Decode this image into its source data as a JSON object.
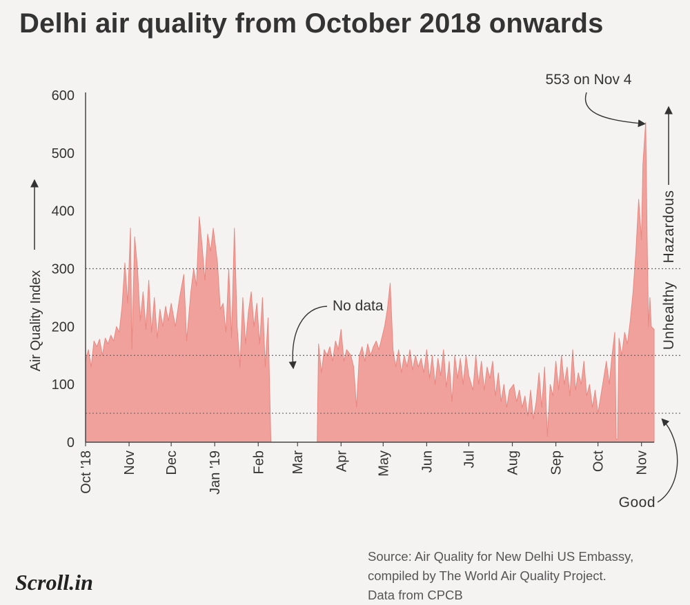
{
  "title": "Delhi air quality from October 2018 onwards",
  "chart_data": {
    "type": "area",
    "ylabel": "Air Quality Index",
    "ylim": [
      0,
      600
    ],
    "yticks": [
      0,
      100,
      200,
      300,
      400,
      500,
      600
    ],
    "xlim": [
      "2018-10-01",
      "2019-11-10"
    ],
    "xticks": [
      {
        "date": "2018-10-01",
        "label": "Oct '18"
      },
      {
        "date": "2018-11-01",
        "label": "Nov"
      },
      {
        "date": "2018-12-01",
        "label": "Dec"
      },
      {
        "date": "2019-01-01",
        "label": "Jan '19"
      },
      {
        "date": "2019-02-01",
        "label": "Feb"
      },
      {
        "date": "2019-03-01",
        "label": "Mar"
      },
      {
        "date": "2019-04-01",
        "label": "Apr"
      },
      {
        "date": "2019-05-01",
        "label": "May"
      },
      {
        "date": "2019-06-01",
        "label": "Jun"
      },
      {
        "date": "2019-07-01",
        "label": "Jul"
      },
      {
        "date": "2019-08-01",
        "label": "Aug"
      },
      {
        "date": "2019-09-01",
        "label": "Sep"
      },
      {
        "date": "2019-10-01",
        "label": "Oct"
      },
      {
        "date": "2019-11-01",
        "label": "Nov"
      }
    ],
    "thresholds": [
      {
        "value": 50,
        "label": "Good"
      },
      {
        "value": 150,
        "label": "Unhealthy"
      },
      {
        "value": 300,
        "label": "Hazardous"
      }
    ],
    "series": [
      {
        "color": "#f0a19c",
        "points": [
          [
            "2018-10-01",
            140
          ],
          [
            "2018-10-03",
            160
          ],
          [
            "2018-10-05",
            130
          ],
          [
            "2018-10-07",
            175
          ],
          [
            "2018-10-09",
            165
          ],
          [
            "2018-10-11",
            178
          ],
          [
            "2018-10-13",
            150
          ],
          [
            "2018-10-15",
            180
          ],
          [
            "2018-10-17",
            170
          ],
          [
            "2018-10-19",
            185
          ],
          [
            "2018-10-21",
            175
          ],
          [
            "2018-10-23",
            200
          ],
          [
            "2018-10-25",
            190
          ],
          [
            "2018-10-27",
            235
          ],
          [
            "2018-10-29",
            310
          ],
          [
            "2018-10-31",
            240
          ],
          [
            "2018-11-02",
            370
          ],
          [
            "2018-11-03",
            160
          ],
          [
            "2018-11-05",
            355
          ],
          [
            "2018-11-07",
            300
          ],
          [
            "2018-11-09",
            210
          ],
          [
            "2018-11-11",
            260
          ],
          [
            "2018-11-13",
            195
          ],
          [
            "2018-11-15",
            280
          ],
          [
            "2018-11-17",
            190
          ],
          [
            "2018-11-19",
            250
          ],
          [
            "2018-11-21",
            180
          ],
          [
            "2018-11-23",
            230
          ],
          [
            "2018-11-25",
            200
          ],
          [
            "2018-11-27",
            235
          ],
          [
            "2018-11-29",
            210
          ],
          [
            "2018-12-01",
            240
          ],
          [
            "2018-12-04",
            200
          ],
          [
            "2018-12-07",
            250
          ],
          [
            "2018-12-10",
            290
          ],
          [
            "2018-12-12",
            175
          ],
          [
            "2018-12-15",
            260
          ],
          [
            "2018-12-17",
            300
          ],
          [
            "2018-12-19",
            270
          ],
          [
            "2018-12-21",
            390
          ],
          [
            "2018-12-23",
            340
          ],
          [
            "2018-12-25",
            280
          ],
          [
            "2018-12-27",
            360
          ],
          [
            "2018-12-29",
            330
          ],
          [
            "2018-12-31",
            370
          ],
          [
            "2019-01-03",
            310
          ],
          [
            "2019-01-05",
            230
          ],
          [
            "2019-01-07",
            240
          ],
          [
            "2019-01-09",
            190
          ],
          [
            "2019-01-11",
            300
          ],
          [
            "2019-01-13",
            180
          ],
          [
            "2019-01-15",
            370
          ],
          [
            "2019-01-17",
            200
          ],
          [
            "2019-01-19",
            130
          ],
          [
            "2019-01-21",
            250
          ],
          [
            "2019-01-23",
            170
          ],
          [
            "2019-01-25",
            225
          ],
          [
            "2019-01-27",
            260
          ],
          [
            "2019-01-29",
            200
          ],
          [
            "2019-01-31",
            240
          ],
          [
            "2019-02-02",
            170
          ],
          [
            "2019-02-04",
            250
          ],
          [
            "2019-02-06",
            130
          ],
          [
            "2019-02-08",
            215
          ],
          [
            "2019-02-10",
            0
          ],
          [
            "2019-03-15",
            0
          ],
          [
            "2019-03-16",
            170
          ],
          [
            "2019-03-18",
            120
          ],
          [
            "2019-03-20",
            160
          ],
          [
            "2019-03-22",
            150
          ],
          [
            "2019-03-24",
            165
          ],
          [
            "2019-03-26",
            140
          ],
          [
            "2019-03-28",
            175
          ],
          [
            "2019-03-30",
            160
          ],
          [
            "2019-04-01",
            195
          ],
          [
            "2019-04-03",
            140
          ],
          [
            "2019-04-05",
            160
          ],
          [
            "2019-04-08",
            150
          ],
          [
            "2019-04-10",
            130
          ],
          [
            "2019-04-12",
            60
          ],
          [
            "2019-04-14",
            150
          ],
          [
            "2019-04-16",
            165
          ],
          [
            "2019-04-18",
            140
          ],
          [
            "2019-04-20",
            170
          ],
          [
            "2019-04-22",
            150
          ],
          [
            "2019-04-24",
            165
          ],
          [
            "2019-04-26",
            175
          ],
          [
            "2019-04-28",
            160
          ],
          [
            "2019-04-30",
            180
          ],
          [
            "2019-05-02",
            200
          ],
          [
            "2019-05-04",
            230
          ],
          [
            "2019-05-06",
            275
          ],
          [
            "2019-05-08",
            160
          ],
          [
            "2019-05-10",
            130
          ],
          [
            "2019-05-12",
            160
          ],
          [
            "2019-05-14",
            120
          ],
          [
            "2019-05-16",
            150
          ],
          [
            "2019-05-18",
            130
          ],
          [
            "2019-05-20",
            160
          ],
          [
            "2019-05-22",
            125
          ],
          [
            "2019-05-24",
            150
          ],
          [
            "2019-05-26",
            130
          ],
          [
            "2019-05-28",
            145
          ],
          [
            "2019-05-30",
            120
          ],
          [
            "2019-06-01",
            160
          ],
          [
            "2019-06-03",
            110
          ],
          [
            "2019-06-05",
            150
          ],
          [
            "2019-06-07",
            100
          ],
          [
            "2019-06-09",
            145
          ],
          [
            "2019-06-11",
            115
          ],
          [
            "2019-06-13",
            160
          ],
          [
            "2019-06-15",
            95
          ],
          [
            "2019-06-17",
            140
          ],
          [
            "2019-06-19",
            70
          ],
          [
            "2019-06-21",
            150
          ],
          [
            "2019-06-23",
            110
          ],
          [
            "2019-06-25",
            145
          ],
          [
            "2019-06-27",
            100
          ],
          [
            "2019-06-29",
            150
          ],
          [
            "2019-07-01",
            115
          ],
          [
            "2019-07-04",
            90
          ],
          [
            "2019-07-06",
            150
          ],
          [
            "2019-07-08",
            100
          ],
          [
            "2019-07-10",
            140
          ],
          [
            "2019-07-12",
            90
          ],
          [
            "2019-07-14",
            130
          ],
          [
            "2019-07-16",
            110
          ],
          [
            "2019-07-18",
            140
          ],
          [
            "2019-07-20",
            80
          ],
          [
            "2019-07-22",
            120
          ],
          [
            "2019-07-24",
            70
          ],
          [
            "2019-07-26",
            100
          ],
          [
            "2019-07-28",
            60
          ],
          [
            "2019-07-30",
            90
          ],
          [
            "2019-08-02",
            100
          ],
          [
            "2019-08-04",
            70
          ],
          [
            "2019-08-06",
            90
          ],
          [
            "2019-08-08",
            60
          ],
          [
            "2019-08-10",
            80
          ],
          [
            "2019-08-12",
            45
          ],
          [
            "2019-08-14",
            90
          ],
          [
            "2019-08-16",
            40
          ],
          [
            "2019-08-18",
            70
          ],
          [
            "2019-08-20",
            120
          ],
          [
            "2019-08-22",
            60
          ],
          [
            "2019-08-24",
            130
          ],
          [
            "2019-08-26",
            10
          ],
          [
            "2019-08-28",
            100
          ],
          [
            "2019-08-30",
            80
          ],
          [
            "2019-09-01",
            140
          ],
          [
            "2019-09-03",
            90
          ],
          [
            "2019-09-05",
            150
          ],
          [
            "2019-09-07",
            100
          ],
          [
            "2019-09-09",
            130
          ],
          [
            "2019-09-11",
            80
          ],
          [
            "2019-09-13",
            160
          ],
          [
            "2019-09-15",
            90
          ],
          [
            "2019-09-17",
            120
          ],
          [
            "2019-09-19",
            100
          ],
          [
            "2019-09-21",
            140
          ],
          [
            "2019-09-23",
            80
          ],
          [
            "2019-09-25",
            100
          ],
          [
            "2019-09-27",
            60
          ],
          [
            "2019-09-29",
            90
          ],
          [
            "2019-10-01",
            50
          ],
          [
            "2019-10-03",
            80
          ],
          [
            "2019-10-05",
            110
          ],
          [
            "2019-10-07",
            140
          ],
          [
            "2019-10-09",
            100
          ],
          [
            "2019-10-11",
            150
          ],
          [
            "2019-10-13",
            190
          ],
          [
            "2019-10-14",
            5
          ],
          [
            "2019-10-15",
            5
          ],
          [
            "2019-10-16",
            180
          ],
          [
            "2019-10-18",
            150
          ],
          [
            "2019-10-20",
            190
          ],
          [
            "2019-10-22",
            170
          ],
          [
            "2019-10-24",
            210
          ],
          [
            "2019-10-26",
            260
          ],
          [
            "2019-10-28",
            330
          ],
          [
            "2019-10-30",
            420
          ],
          [
            "2019-11-01",
            350
          ],
          [
            "2019-11-02",
            480
          ],
          [
            "2019-11-04",
            553
          ],
          [
            "2019-11-05",
            360
          ],
          [
            "2019-11-06",
            200
          ],
          [
            "2019-11-07",
            250
          ],
          [
            "2019-11-08",
            200
          ],
          [
            "2019-11-10",
            195
          ]
        ]
      }
    ],
    "annotations": [
      {
        "text": "553 on Nov 4",
        "date": "2019-11-04",
        "value": 553
      },
      {
        "text": "No data",
        "date": "2019-02-25",
        "value": 150
      }
    ]
  },
  "source": [
    "Source: Air Quality for New Delhi US Embassy,",
    "compiled by The World Air Quality Project.",
    "Data from CPCB"
  ],
  "logo": "Scroll.in"
}
